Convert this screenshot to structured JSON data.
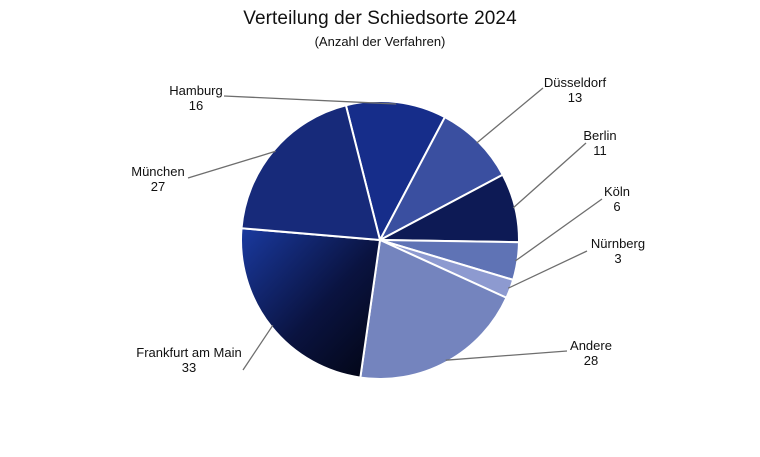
{
  "chart_data": {
    "type": "pie",
    "title": "Verteilung der Schiedsorte 2024",
    "subtitle": "(Anzahl der Verfahren)",
    "legend": "none",
    "categories": [
      "Hamburg",
      "Düsseldorf",
      "Berlin",
      "Köln",
      "Nürnberg",
      "Andere",
      "Frankfurt am Main",
      "München"
    ],
    "values": [
      16,
      13,
      11,
      6,
      3,
      28,
      33,
      27
    ],
    "value_labels": [
      "16",
      "13",
      "11",
      "6",
      "3",
      "28",
      "33",
      "27"
    ],
    "colors": [
      "#162d8a",
      "#3a4fa0",
      "#0d1a55",
      "#5f73b5",
      "#8d9ad0",
      "#7484be",
      "gradient:#1a3aa0-#020512",
      "#172a7a"
    ]
  }
}
